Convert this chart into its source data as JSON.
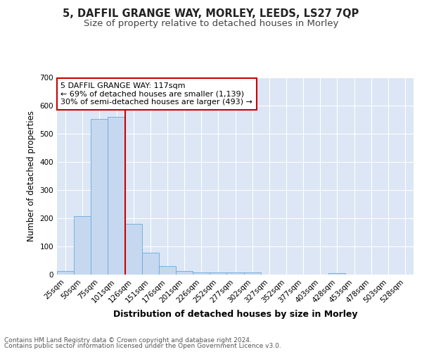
{
  "title1": "5, DAFFIL GRANGE WAY, MORLEY, LEEDS, LS27 7QP",
  "title2": "Size of property relative to detached houses in Morley",
  "xlabel": "Distribution of detached houses by size in Morley",
  "ylabel": "Number of detached properties",
  "bar_labels": [
    "25sqm",
    "50sqm",
    "75sqm",
    "101sqm",
    "126sqm",
    "151sqm",
    "176sqm",
    "201sqm",
    "226sqm",
    "252sqm",
    "277sqm",
    "302sqm",
    "327sqm",
    "352sqm",
    "377sqm",
    "403sqm",
    "428sqm",
    "453sqm",
    "478sqm",
    "503sqm",
    "528sqm"
  ],
  "bar_values": [
    12,
    207,
    553,
    560,
    180,
    78,
    30,
    13,
    8,
    8,
    8,
    8,
    0,
    0,
    0,
    0,
    6,
    0,
    0,
    0,
    0
  ],
  "bar_color": "#c5d8f0",
  "bar_edge_color": "#6baad8",
  "bg_color": "#dce6f5",
  "grid_color": "#ffffff",
  "vline_color": "#cc0000",
  "vline_pos": 4,
  "annotation_text": "5 DAFFIL GRANGE WAY: 117sqm\n← 69% of detached houses are smaller (1,139)\n30% of semi-detached houses are larger (493) →",
  "annotation_box_color": "#ffffff",
  "annotation_border_color": "#cc0000",
  "ylim": [
    0,
    700
  ],
  "yticks": [
    0,
    100,
    200,
    300,
    400,
    500,
    600,
    700
  ],
  "footer1": "Contains HM Land Registry data © Crown copyright and database right 2024.",
  "footer2": "Contains public sector information licensed under the Open Government Licence v3.0.",
  "fig_bg": "#ffffff",
  "title1_fontsize": 10.5,
  "title2_fontsize": 9.5,
  "xlabel_fontsize": 9,
  "ylabel_fontsize": 8.5,
  "tick_fontsize": 7.5,
  "annot_fontsize": 8,
  "footer_fontsize": 6.5
}
